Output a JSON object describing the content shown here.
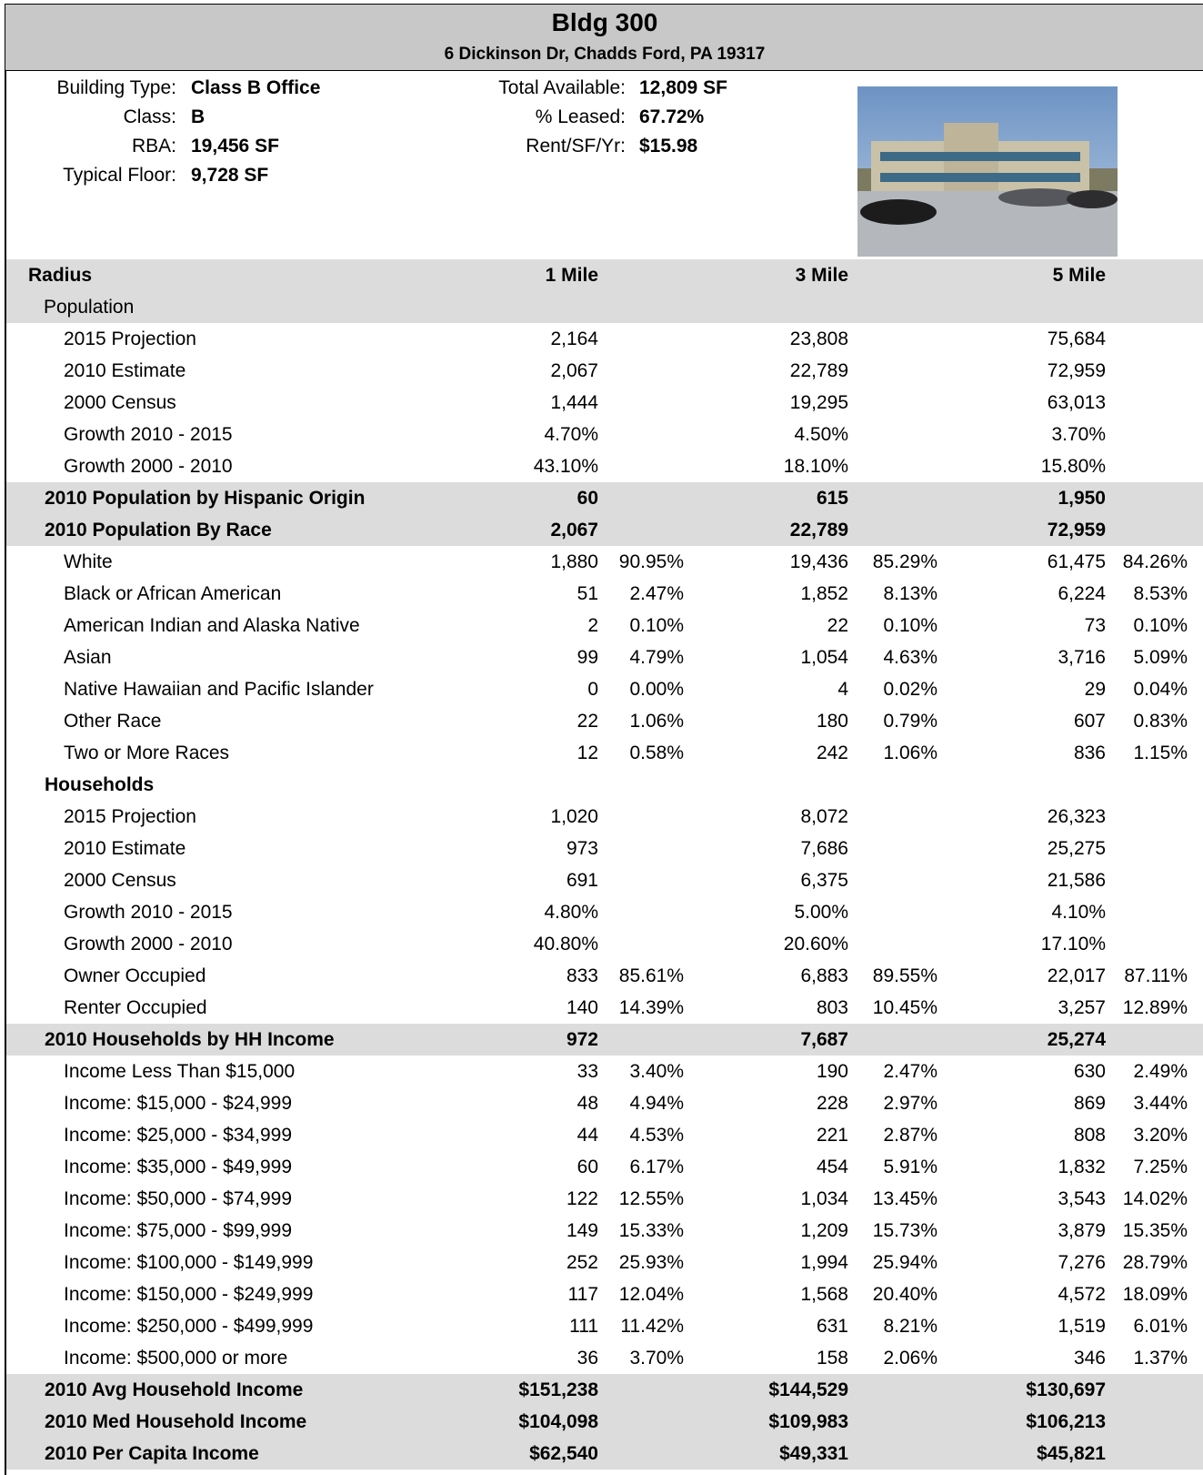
{
  "header": {
    "title": "Bldg 300",
    "address": "6 Dickinson Dr, Chadds Ford, PA  19317"
  },
  "info": {
    "left": [
      [
        "Building Type:",
        "Class B Office"
      ],
      [
        "Class:",
        "B"
      ],
      [
        "RBA:",
        "19,456 SF"
      ],
      [
        "Typical Floor:",
        "9,728 SF"
      ]
    ],
    "middle": [
      [
        "Total Available:",
        "12,809 SF"
      ],
      [
        "% Leased:",
        "67.72%"
      ],
      [
        "Rent/SF/Yr:",
        "$15.98"
      ]
    ]
  },
  "table": {
    "columns": [
      "Radius",
      "1 Mile",
      "3 Mile",
      "5 Mile"
    ],
    "groups": [
      {
        "label": "Population",
        "rows": [
          {
            "label": "2015 Projection",
            "values": [
              [
                "2,164"
              ],
              [
                "23,808"
              ],
              [
                "75,684"
              ]
            ]
          },
          {
            "label": "2010 Estimate",
            "values": [
              [
                "2,067"
              ],
              [
                "22,789"
              ],
              [
                "72,959"
              ]
            ]
          },
          {
            "label": "2000 Census",
            "values": [
              [
                "1,444"
              ],
              [
                "19,295"
              ],
              [
                "63,013"
              ]
            ]
          },
          {
            "label": "Growth 2010 - 2015",
            "values": [
              [
                "4.70%"
              ],
              [
                "4.50%"
              ],
              [
                "3.70%"
              ]
            ]
          },
          {
            "label": "Growth 2000 - 2010",
            "values": [
              [
                "43.10%"
              ],
              [
                "18.10%"
              ],
              [
                "15.80%"
              ]
            ]
          }
        ]
      },
      {
        "label": "2010 Population by Hispanic Origin",
        "values": [
          "60",
          "615",
          "1,950"
        ],
        "rows": []
      },
      {
        "label": "2010 Population By Race",
        "values": [
          "2,067",
          "22,789",
          "72,959"
        ],
        "rows": [
          {
            "label": "White",
            "values": [
              [
                "1,880",
                "90.95%"
              ],
              [
                "19,436",
                "85.29%"
              ],
              [
                "61,475",
                "84.26%"
              ]
            ]
          },
          {
            "label": "Black or African American",
            "values": [
              [
                "51",
                "2.47%"
              ],
              [
                "1,852",
                "8.13%"
              ],
              [
                "6,224",
                "8.53%"
              ]
            ]
          },
          {
            "label": "American Indian and Alaska Native",
            "values": [
              [
                "2",
                "0.10%"
              ],
              [
                "22",
                "0.10%"
              ],
              [
                "73",
                "0.10%"
              ]
            ]
          },
          {
            "label": "Asian",
            "values": [
              [
                "99",
                "4.79%"
              ],
              [
                "1,054",
                "4.63%"
              ],
              [
                "3,716",
                "5.09%"
              ]
            ]
          },
          {
            "label": "Native Hawaiian and Pacific Islander",
            "values": [
              [
                "0",
                "0.00%"
              ],
              [
                "4",
                "0.02%"
              ],
              [
                "29",
                "0.04%"
              ]
            ]
          },
          {
            "label": "Other Race",
            "values": [
              [
                "22",
                "1.06%"
              ],
              [
                "180",
                "0.79%"
              ],
              [
                "607",
                "0.83%"
              ]
            ]
          },
          {
            "label": "Two or More Races",
            "values": [
              [
                "12",
                "0.58%"
              ],
              [
                "242",
                "1.06%"
              ],
              [
                "836",
                "1.15%"
              ]
            ]
          }
        ]
      },
      {
        "label": "Households",
        "rows": [
          {
            "label": "2015 Projection",
            "values": [
              [
                "1,020"
              ],
              [
                "8,072"
              ],
              [
                "26,323"
              ]
            ]
          },
          {
            "label": "2010 Estimate",
            "values": [
              [
                "973"
              ],
              [
                "7,686"
              ],
              [
                "25,275"
              ]
            ]
          },
          {
            "label": "2000 Census",
            "values": [
              [
                "691"
              ],
              [
                "6,375"
              ],
              [
                "21,586"
              ]
            ]
          },
          {
            "label": "Growth 2010 - 2015",
            "values": [
              [
                "4.80%"
              ],
              [
                "5.00%"
              ],
              [
                "4.10%"
              ]
            ]
          },
          {
            "label": "Growth 2000 - 2010",
            "values": [
              [
                "40.80%"
              ],
              [
                "20.60%"
              ],
              [
                "17.10%"
              ]
            ]
          },
          {
            "label": "Owner Occupied",
            "values": [
              [
                "833",
                "85.61%"
              ],
              [
                "6,883",
                "89.55%"
              ],
              [
                "22,017",
                "87.11%"
              ]
            ]
          },
          {
            "label": "Renter Occupied",
            "values": [
              [
                "140",
                "14.39%"
              ],
              [
                "803",
                "10.45%"
              ],
              [
                "3,257",
                "12.89%"
              ]
            ]
          }
        ]
      },
      {
        "label": "2010 Households by HH Income",
        "values": [
          "972",
          "7,687",
          "25,274"
        ],
        "rows": [
          {
            "label": "Income Less Than $15,000",
            "values": [
              [
                "33",
                "3.40%"
              ],
              [
                "190",
                "2.47%"
              ],
              [
                "630",
                "2.49%"
              ]
            ]
          },
          {
            "label": "Income: $15,000 - $24,999",
            "values": [
              [
                "48",
                "4.94%"
              ],
              [
                "228",
                "2.97%"
              ],
              [
                "869",
                "3.44%"
              ]
            ]
          },
          {
            "label": "Income: $25,000 - $34,999",
            "values": [
              [
                "44",
                "4.53%"
              ],
              [
                "221",
                "2.87%"
              ],
              [
                "808",
                "3.20%"
              ]
            ]
          },
          {
            "label": "Income: $35,000 - $49,999",
            "values": [
              [
                "60",
                "6.17%"
              ],
              [
                "454",
                "5.91%"
              ],
              [
                "1,832",
                "7.25%"
              ]
            ]
          },
          {
            "label": "Income: $50,000 - $74,999",
            "values": [
              [
                "122",
                "12.55%"
              ],
              [
                "1,034",
                "13.45%"
              ],
              [
                "3,543",
                "14.02%"
              ]
            ]
          },
          {
            "label": "Income: $75,000 - $99,999",
            "values": [
              [
                "149",
                "15.33%"
              ],
              [
                "1,209",
                "15.73%"
              ],
              [
                "3,879",
                "15.35%"
              ]
            ]
          },
          {
            "label": "Income: $100,000 - $149,999",
            "values": [
              [
                "252",
                "25.93%"
              ],
              [
                "1,994",
                "25.94%"
              ],
              [
                "7,276",
                "28.79%"
              ]
            ]
          },
          {
            "label": "Income: $150,000 - $249,999",
            "values": [
              [
                "117",
                "12.04%"
              ],
              [
                "1,568",
                "20.40%"
              ],
              [
                "4,572",
                "18.09%"
              ]
            ]
          },
          {
            "label": "Income: $250,000 - $499,999",
            "values": [
              [
                "111",
                "11.42%"
              ],
              [
                "631",
                "8.21%"
              ],
              [
                "1,519",
                "6.01%"
              ]
            ]
          },
          {
            "label": "Income: $500,000 or more",
            "values": [
              [
                "36",
                "3.70%"
              ],
              [
                "158",
                "2.06%"
              ],
              [
                "346",
                "1.37%"
              ]
            ]
          }
        ]
      },
      {
        "label": "2010 Avg Household Income",
        "values": [
          "$151,238",
          "$144,529",
          "$130,697"
        ],
        "rows": []
      },
      {
        "label": "2010 Med Household Income",
        "values": [
          "$104,098",
          "$109,983",
          "$106,213"
        ],
        "rows": []
      },
      {
        "label": "2010 Per Capita Income",
        "values": [
          "$62,540",
          "$49,331",
          "$45,821"
        ],
        "rows": []
      }
    ]
  }
}
